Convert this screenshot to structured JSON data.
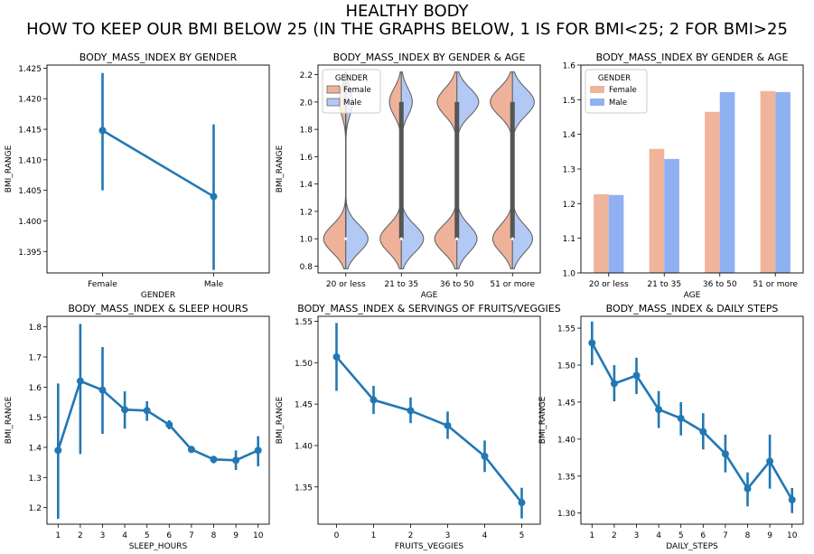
{
  "suptitle": {
    "line1": "HEALTHY BODY",
    "line2": "HOW TO KEEP OUR BMI BELOW 25 (IN THE GRAPHS BELOW, 1 IS FOR BMI<25; 2 FOR BMI>25"
  },
  "colors": {
    "point": "#2178b4",
    "female": "#f0b49a",
    "male": "#8fb1f2",
    "female_violin": "#eeb29a",
    "male_violin": "#b2c9f5"
  },
  "chart_data": [
    {
      "type": "point",
      "title": "BODY_MASS_INDEX BY GENDER",
      "xlabel": "GENDER",
      "ylabel": "BMI_RANGE",
      "categories": [
        "Female",
        "Male"
      ],
      "values": [
        1.4148,
        1.404
      ],
      "ci": [
        [
          1.405,
          1.4242
        ],
        [
          1.392,
          1.4158
        ]
      ],
      "ylim": [
        1.3915,
        1.4255
      ],
      "yticks": [
        "1.395",
        "1.400",
        "1.405",
        "1.410",
        "1.415",
        "1.420",
        "1.425"
      ]
    },
    {
      "type": "violin",
      "title": "BODY_MASS_INDEX BY GENDER & AGE",
      "xlabel": "AGE",
      "ylabel": "BMI_RANGE",
      "categories": [
        "20 or less",
        "21 to 35",
        "36 to 50",
        "51 or more"
      ],
      "legend_title": "GENDER",
      "legend": [
        "Female",
        "Male"
      ],
      "legend_position": "upper-left",
      "proportion_bmi2": {
        "Female": [
          0.23,
          0.36,
          0.47,
          0.53
        ],
        "Male": [
          0.23,
          0.33,
          0.52,
          0.52
        ]
      },
      "ylim": [
        0.75,
        2.27
      ],
      "yticks": [
        "0.8",
        "1.0",
        "1.2",
        "1.4",
        "1.6",
        "1.8",
        "2.0",
        "2.2"
      ]
    },
    {
      "type": "bar",
      "title": "BODY_MASS_INDEX BY GENDER & AGE",
      "xlabel": "AGE",
      "ylabel": "",
      "categories": [
        "20 or less",
        "21 to 35",
        "36 to 50",
        "51 or more"
      ],
      "legend_title": "GENDER",
      "legend_position": "upper-left",
      "series": [
        {
          "name": "Female",
          "values": [
            1.227,
            1.358,
            1.465,
            1.525
          ]
        },
        {
          "name": "Male",
          "values": [
            1.225,
            1.329,
            1.522,
            1.522
          ]
        }
      ],
      "ylim": [
        1.0,
        1.6
      ],
      "yticks": [
        "1.0",
        "1.1",
        "1.2",
        "1.3",
        "1.4",
        "1.5",
        "1.6"
      ]
    },
    {
      "type": "point",
      "title": "BODY_MASS_INDEX & SLEEP HOURS",
      "xlabel": "SLEEP_HOURS",
      "ylabel": "BMI_RANGE",
      "categories": [
        "1",
        "2",
        "3",
        "4",
        "5",
        "6",
        "7",
        "8",
        "9",
        "10"
      ],
      "values": [
        1.39,
        1.62,
        1.59,
        1.525,
        1.522,
        1.475,
        1.393,
        1.36,
        1.357,
        1.39
      ],
      "ci": [
        [
          1.163,
          1.612
        ],
        [
          1.378,
          1.81
        ],
        [
          1.445,
          1.733
        ],
        [
          1.462,
          1.586
        ],
        [
          1.488,
          1.553
        ],
        [
          1.46,
          1.49
        ],
        [
          1.382,
          1.405
        ],
        [
          1.347,
          1.372
        ],
        [
          1.325,
          1.39
        ],
        [
          1.337,
          1.437
        ]
      ],
      "ylim": [
        1.145,
        1.835
      ],
      "yticks": [
        "1.2",
        "1.3",
        "1.4",
        "1.5",
        "1.6",
        "1.7",
        "1.8"
      ]
    },
    {
      "type": "point",
      "title": "BODY_MASS_INDEX & SERVINGS OF FRUITS/VEGGIES",
      "xlabel": "FRUITS_VEGGIES",
      "ylabel": "BMI_RANGE",
      "categories": [
        "0",
        "1",
        "2",
        "3",
        "4",
        "5"
      ],
      "values": [
        1.507,
        1.455,
        1.442,
        1.424,
        1.387,
        1.331
      ],
      "ci": [
        [
          1.466,
          1.548
        ],
        [
          1.438,
          1.472
        ],
        [
          1.427,
          1.458
        ],
        [
          1.408,
          1.441
        ],
        [
          1.368,
          1.406
        ],
        [
          1.312,
          1.349
        ]
      ],
      "ylim": [
        1.305,
        1.556
      ],
      "yticks": [
        "1.35",
        "1.40",
        "1.45",
        "1.50",
        "1.55"
      ]
    },
    {
      "type": "point",
      "title": "BODY_MASS_INDEX & DAILY STEPS",
      "xlabel": "DAILY_STEPS",
      "ylabel": "BMI_RANGE",
      "categories": [
        "1",
        "2",
        "3",
        "4",
        "5",
        "6",
        "7",
        "8",
        "9",
        "10"
      ],
      "values": [
        1.53,
        1.475,
        1.486,
        1.44,
        1.428,
        1.41,
        1.38,
        1.333,
        1.37,
        1.318
      ],
      "ci": [
        [
          1.5,
          1.559
        ],
        [
          1.451,
          1.5
        ],
        [
          1.461,
          1.51
        ],
        [
          1.415,
          1.465
        ],
        [
          1.405,
          1.45
        ],
        [
          1.386,
          1.435
        ],
        [
          1.355,
          1.406
        ],
        [
          1.309,
          1.355
        ],
        [
          1.333,
          1.406
        ],
        [
          1.3,
          1.334
        ]
      ],
      "ylim": [
        1.285,
        1.566
      ],
      "yticks": [
        "1.30",
        "1.35",
        "1.40",
        "1.45",
        "1.50",
        "1.55"
      ]
    }
  ]
}
